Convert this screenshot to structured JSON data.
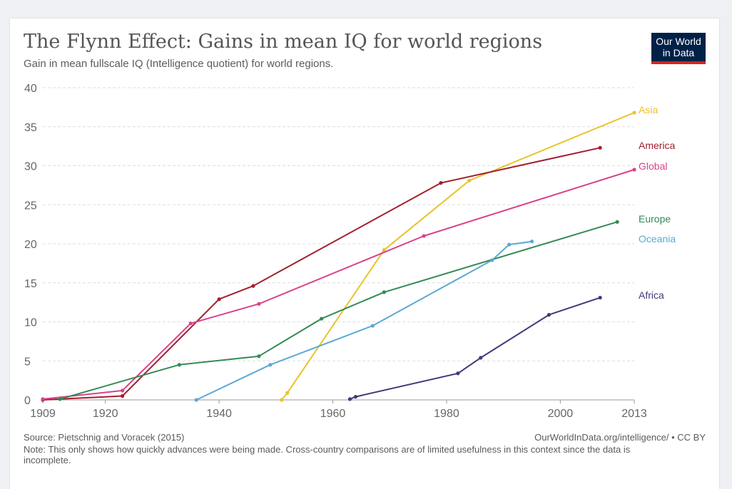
{
  "header": {
    "title": "The Flynn Effect: Gains in mean IQ for world regions",
    "subtitle": "Gain in mean fullscale IQ (Intelligence quotient) for world regions."
  },
  "logo": {
    "line1": "Our World",
    "line2": "in Data",
    "colors": {
      "background": "#002147",
      "accent": "#ce261e"
    }
  },
  "footer": {
    "source": "Source: Pietschnig and Voracek (2015)",
    "url": "OurWorldInData.org/intelligence/ • CC BY",
    "note": "Note: This only shows how quickly advances were being made. Cross-country comparisons are of limited usefulness in this context since the data is incomplete."
  },
  "chart_data": {
    "type": "line",
    "title": "The Flynn Effect: Gains in mean IQ for world regions",
    "subtitle": "Gain in mean fullscale IQ (Intelligence quotient) for world regions.",
    "xlim": [
      1909,
      2013
    ],
    "ylim": [
      0,
      40
    ],
    "x_ticks": [
      1909,
      1920,
      1940,
      1960,
      1980,
      2000,
      2013
    ],
    "y_ticks": [
      0,
      5,
      10,
      15,
      20,
      25,
      30,
      35,
      40
    ],
    "grid": true,
    "legend": "inline labels at line ends (right)",
    "series": [
      {
        "name": "Asia",
        "color": "#e8c32d",
        "points": [
          [
            1951,
            0
          ],
          [
            1952,
            0.9
          ],
          [
            1969,
            19.2
          ],
          [
            1984,
            28.1
          ],
          [
            2013,
            36.8
          ]
        ]
      },
      {
        "name": "America",
        "color": "#a2202d",
        "points": [
          [
            1909,
            0
          ],
          [
            1923,
            0.5
          ],
          [
            1940,
            12.9
          ],
          [
            1946,
            14.6
          ],
          [
            1979,
            27.8
          ],
          [
            2007,
            32.3
          ]
        ]
      },
      {
        "name": "Global",
        "color": "#d9428b",
        "points": [
          [
            1909,
            0.1
          ],
          [
            1923,
            1.2
          ],
          [
            1935,
            9.8
          ],
          [
            1947,
            12.3
          ],
          [
            1976,
            21.0
          ],
          [
            2013,
            29.5
          ]
        ]
      },
      {
        "name": "Europe",
        "color": "#358a56",
        "points": [
          [
            1912,
            0.1
          ],
          [
            1933,
            4.5
          ],
          [
            1947,
            5.6
          ],
          [
            1958,
            10.4
          ],
          [
            1969,
            13.8
          ],
          [
            2010,
            22.8
          ]
        ]
      },
      {
        "name": "Oceania",
        "color": "#5ca8d5",
        "points": [
          [
            1936,
            0
          ],
          [
            1949,
            4.5
          ],
          [
            1967,
            9.5
          ],
          [
            1988,
            17.9
          ],
          [
            1991,
            19.9
          ],
          [
            1995,
            20.3
          ]
        ]
      },
      {
        "name": "Africa",
        "color": "#3f3a7a",
        "points": [
          [
            1963,
            0.1
          ],
          [
            1964,
            0.4
          ],
          [
            1982,
            3.4
          ],
          [
            1986,
            5.4
          ],
          [
            1998,
            10.9
          ],
          [
            2007,
            13.1
          ]
        ]
      }
    ]
  }
}
